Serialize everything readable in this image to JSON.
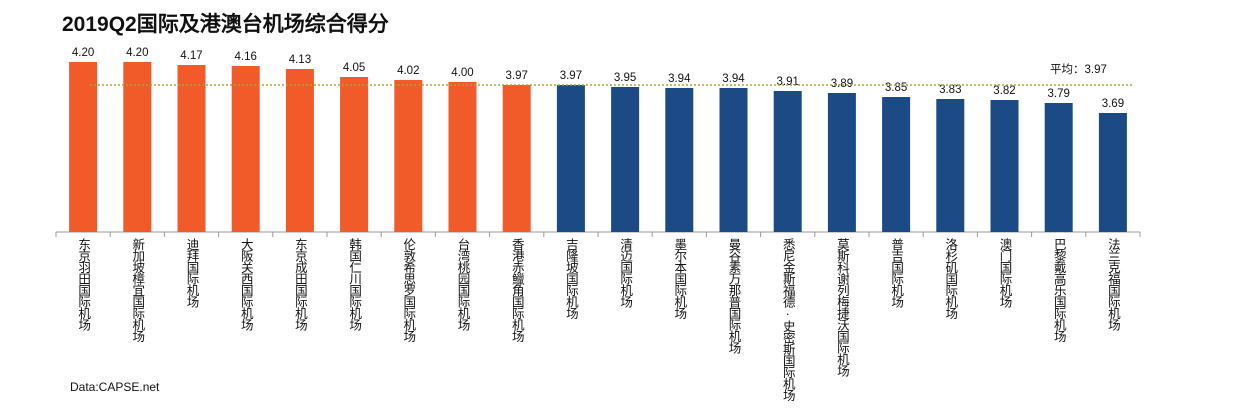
{
  "chart_data": {
    "type": "bar",
    "title": "2019Q2国际及港澳台机场综合得分",
    "source": "Data:CAPSE.net",
    "categories": [
      "东京羽田国际机场",
      "新加坡樟宜国际机场",
      "迪拜国际机场",
      "大阪关西国际机场",
      "东京成田国际机场",
      "韩国仁川国际机场",
      "伦敦希思罗国际机场",
      "台湾桃园国际机场",
      "香港赤鱲角国际机场",
      "吉隆坡国际机场",
      "清迈国际机场",
      "墨尔本国际机场",
      "曼谷素万那普国际机场",
      "悉尼金斯福德·史密斯国际机场",
      "莫斯科谢列梅捷沃国际机场",
      "普吉国际机场",
      "洛杉矶国际机场",
      "澳门国际机场",
      "巴黎戴高乐国际机场",
      "法兰克福国际机场"
    ],
    "values": [
      4.2,
      4.2,
      4.17,
      4.16,
      4.13,
      4.05,
      4.02,
      4.0,
      3.97,
      3.97,
      3.95,
      3.94,
      3.94,
      3.91,
      3.89,
      3.85,
      3.83,
      3.82,
      3.79,
      3.69
    ],
    "value_labels": [
      "4.20",
      "4.20",
      "4.17",
      "4.16",
      "4.13",
      "4.05",
      "4.02",
      "4.00",
      "3.97",
      "3.97",
      "3.95",
      "3.94",
      "3.94",
      "3.91",
      "3.89",
      "3.85",
      "3.83",
      "3.82",
      "3.79",
      "3.69"
    ],
    "highlight_count": 9,
    "colors": {
      "highlight": "#F15A29",
      "other": "#1B4A85",
      "average": "#A5A53A"
    },
    "average": {
      "value": 3.97,
      "label": "平均：3.97"
    },
    "ylim": [
      2.5,
      4.3
    ],
    "xlabel": "",
    "ylabel": "",
    "grid": false
  }
}
